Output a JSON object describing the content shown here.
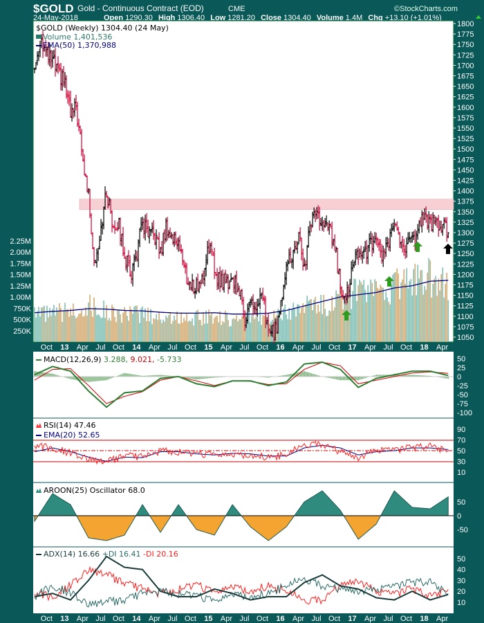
{
  "header": {
    "symbol": "$GOLD",
    "name": "Gold - Continuous Contract (EOD)",
    "exchange": "CME",
    "watermark": "©StockCharts.com",
    "date": "24-May-2018",
    "open_label": "Open",
    "open": "1290.30",
    "high_label": "High",
    "high": "1306.40",
    "low_label": "Low",
    "low": "1281.20",
    "close_label": "Close",
    "close": "1304.40",
    "volume_label": "Volume",
    "volume": "1.4M",
    "chg_label": "Chg",
    "chg": "+13.10 (+1.01%)"
  },
  "legend": {
    "price": "$GOLD (Weekly) 1304.40 (24 May)",
    "volume": "Volume 1,401,536",
    "ema": "EMA(50) 1,370,988",
    "macd_name": "MACD(12,26,9)",
    "macd_v1": "3.288,",
    "macd_v2": "9.021,",
    "macd_v3": "-5.733",
    "rsi": "RSI(14) 47.46",
    "rsi_ema": "EMA(20) 52.65",
    "aroon": "AROON(25) Oscillator 68.0",
    "adx": "ADX(14) 16.66",
    "pdi": "+DI 16.41",
    "mdi": "-DI 20.16"
  },
  "colors": {
    "background": "#0b5858",
    "up_bar": "#000000",
    "down_bar": "#cc0033",
    "vol_up": "#7fbfb4",
    "vol_down": "#d4aa70",
    "ema": "#000080",
    "resistance": "#f5c6cb",
    "macd": "#2e7d32",
    "signal": "#cc0000",
    "aroon_pos": "#2e8b7e",
    "aroon_neg": "#f4a430",
    "arrow_green": "#2e9a1e"
  },
  "chart_data": {
    "type": "ohlc-multi-panel",
    "start": "2012-08",
    "frequency_price": "monthly",
    "price_close_monthly": [
      1690,
      1770,
      1720,
      1710,
      1675,
      1660,
      1580,
      1595,
      1475,
      1390,
      1225,
      1310,
      1395,
      1325,
      1320,
      1250,
      1200,
      1245,
      1325,
      1285,
      1295,
      1250,
      1320,
      1282,
      1285,
      1210,
      1170,
      1175,
      1185,
      1280,
      1210,
      1185,
      1185,
      1190,
      1172,
      1095,
      1133,
      1115,
      1142,
      1065,
      1060,
      1117,
      1238,
      1234,
      1293,
      1215,
      1320,
      1357,
      1308,
      1316,
      1275,
      1173,
      1152,
      1211,
      1253,
      1249,
      1268,
      1269,
      1242,
      1269,
      1322,
      1283,
      1271,
      1275,
      1303,
      1345,
      1318,
      1325,
      1315,
      1304
    ],
    "resistance_band": [
      1355,
      1380
    ],
    "price_axis": {
      "min": 1050,
      "max": 1800,
      "step": 25
    },
    "volume_axis_labels": [
      "2.25M",
      "2.00M",
      "1.75M",
      "1.50M",
      "1.25M",
      "1.00M",
      "750K",
      "500K",
      "250K"
    ],
    "frequency_indicators": "quarterly",
    "volume_k": [
      650,
      700,
      750,
      900,
      750,
      650,
      700,
      600,
      600,
      600,
      650,
      550,
      600,
      650,
      700,
      900,
      900,
      1100,
      1200,
      1250,
      1400,
      1500,
      1600,
      1400
    ],
    "volume_ema_k": [
      650,
      680,
      700,
      740,
      730,
      700,
      690,
      660,
      640,
      640,
      650,
      620,
      620,
      640,
      700,
      800,
      900,
      1000,
      1050,
      1100,
      1200,
      1250,
      1350,
      1370
    ],
    "macd": [
      5,
      28,
      15,
      -40,
      -85,
      -45,
      -40,
      -5,
      0,
      -20,
      -28,
      -12,
      -12,
      -25,
      -15,
      35,
      40,
      20,
      -30,
      -5,
      5,
      15,
      15,
      3
    ],
    "macd_signal": [
      -10,
      20,
      22,
      -25,
      -75,
      -55,
      -42,
      -10,
      0,
      -12,
      -25,
      -12,
      -13,
      -22,
      -20,
      20,
      40,
      30,
      -20,
      -10,
      0,
      10,
      13,
      9
    ],
    "macd_ticks": [
      "50",
      "25",
      "0",
      "-25",
      "-50",
      "-75",
      "-100"
    ],
    "rsi": [
      60,
      55,
      45,
      35,
      28,
      42,
      38,
      50,
      48,
      42,
      45,
      43,
      42,
      38,
      42,
      62,
      62,
      48,
      33,
      52,
      52,
      55,
      58,
      47
    ],
    "rsi_ema": [
      48,
      55,
      48,
      38,
      30,
      38,
      37,
      48,
      48,
      44,
      42,
      45,
      44,
      40,
      40,
      55,
      60,
      55,
      42,
      48,
      50,
      55,
      55,
      52
    ],
    "rsi_ticks": [
      "90",
      "70",
      "50",
      "30",
      "10"
    ],
    "aroon": [
      -20,
      80,
      40,
      -80,
      -90,
      -70,
      40,
      -60,
      40,
      -50,
      -70,
      40,
      -40,
      -90,
      -40,
      50,
      90,
      20,
      -85,
      -30,
      90,
      30,
      25,
      68
    ],
    "aroon_ticks": [
      "50",
      "0",
      "-50"
    ],
    "adx": [
      15,
      18,
      12,
      30,
      52,
      42,
      40,
      20,
      15,
      15,
      22,
      18,
      12,
      15,
      15,
      28,
      35,
      25,
      22,
      14,
      12,
      20,
      12,
      17
    ],
    "plus_di": [
      15,
      25,
      18,
      8,
      10,
      12,
      18,
      20,
      18,
      15,
      12,
      18,
      15,
      18,
      25,
      32,
      25,
      22,
      18,
      22,
      25,
      28,
      28,
      16
    ],
    "minus_di": [
      18,
      15,
      25,
      40,
      35,
      28,
      22,
      18,
      22,
      25,
      20,
      25,
      20,
      25,
      20,
      12,
      12,
      25,
      28,
      20,
      18,
      22,
      15,
      20
    ],
    "adx_ticks": [
      "50",
      "40",
      "30",
      "20",
      "10"
    ],
    "x_ticks": [
      {
        "label": "Oct",
        "m": 2,
        "bold": false
      },
      {
        "label": "13",
        "m": 5,
        "bold": true
      },
      {
        "label": "Apr",
        "m": 8,
        "bold": false
      },
      {
        "label": "Jul",
        "m": 11,
        "bold": false
      },
      {
        "label": "Oct",
        "m": 14,
        "bold": false
      },
      {
        "label": "14",
        "m": 17,
        "bold": true
      },
      {
        "label": "Apr",
        "m": 20,
        "bold": false
      },
      {
        "label": "Jul",
        "m": 23,
        "bold": false
      },
      {
        "label": "Oct",
        "m": 26,
        "bold": false
      },
      {
        "label": "15",
        "m": 29,
        "bold": true
      },
      {
        "label": "Apr",
        "m": 32,
        "bold": false
      },
      {
        "label": "Jul",
        "m": 35,
        "bold": false
      },
      {
        "label": "Oct",
        "m": 38,
        "bold": false
      },
      {
        "label": "16",
        "m": 41,
        "bold": true
      },
      {
        "label": "Apr",
        "m": 44,
        "bold": false
      },
      {
        "label": "Jul",
        "m": 47,
        "bold": false
      },
      {
        "label": "Oct",
        "m": 50,
        "bold": false
      },
      {
        "label": "17",
        "m": 53,
        "bold": true
      },
      {
        "label": "Apr",
        "m": 56,
        "bold": false
      },
      {
        "label": "Jul",
        "m": 59,
        "bold": false
      },
      {
        "label": "Oct",
        "m": 62,
        "bold": false
      },
      {
        "label": "18",
        "m": 65,
        "bold": true
      },
      {
        "label": "Apr",
        "m": 68,
        "bold": false
      }
    ]
  }
}
